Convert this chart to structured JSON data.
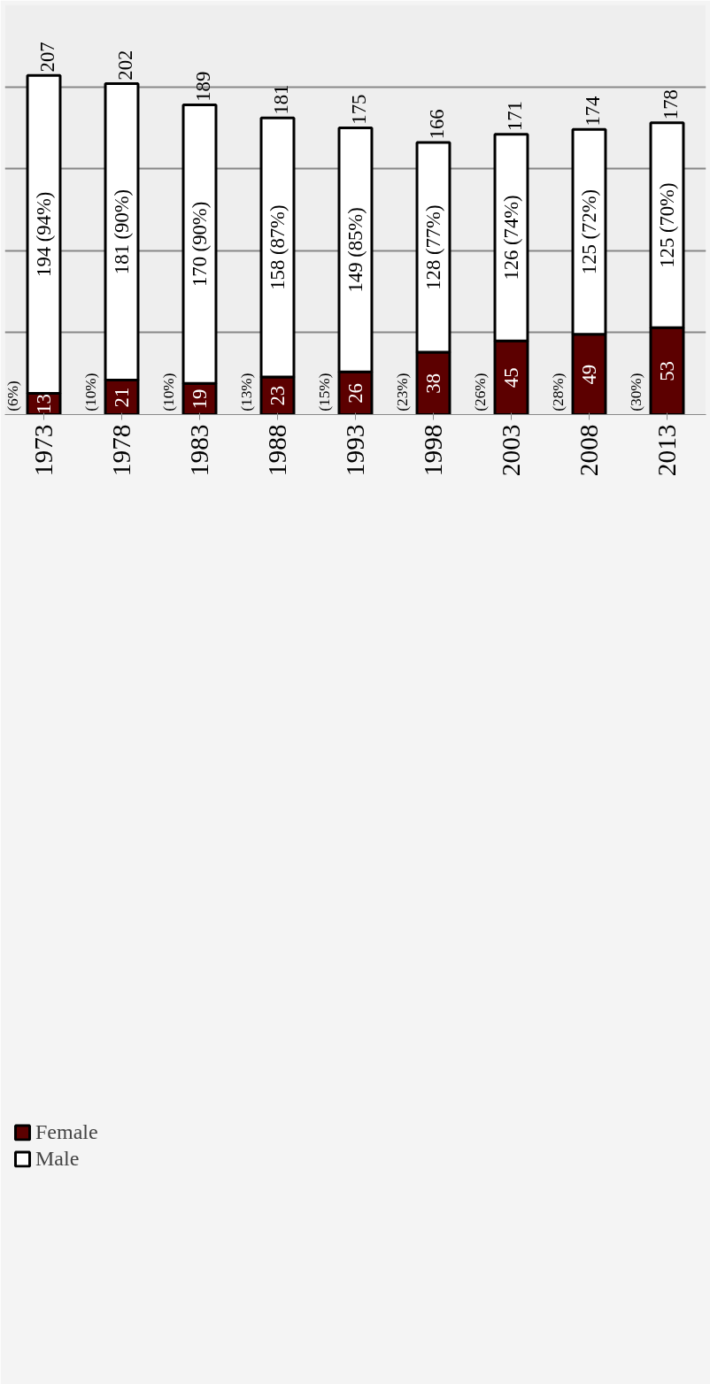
{
  "chart_data": {
    "type": "bar",
    "stacked": true,
    "categories": [
      "1973",
      "1978",
      "1983",
      "1988",
      "1993",
      "1998",
      "2003",
      "2008",
      "2013"
    ],
    "series": [
      {
        "name": "Female",
        "color": "#5c0000",
        "values": [
          13,
          21,
          19,
          23,
          26,
          38,
          45,
          49,
          53
        ],
        "value_labels": [
          "13",
          "21",
          "19",
          "23",
          "26",
          "38",
          "45",
          "49",
          "53"
        ]
      },
      {
        "name": "Male",
        "color": "#ffffff",
        "values": [
          194,
          181,
          170,
          158,
          149,
          128,
          126,
          125,
          125
        ],
        "value_labels": [
          "194 (94%)",
          "181 (90%)",
          "170 (90%)",
          "158 (87%)",
          "149 (85%)",
          "128 (77%)",
          "126 (74%)",
          "125 (72%)",
          "125 (70%)"
        ]
      }
    ],
    "totals": [
      "207",
      "202",
      "189",
      "181",
      "175",
      "166",
      "171",
      "174",
      "178"
    ],
    "annotations": [
      {
        "text": "(6%)",
        "x": "1973",
        "y": 0
      },
      {
        "text": "(10%)",
        "x": "1978",
        "y": 0
      },
      {
        "text": "(10%)",
        "x": "1983",
        "y": 0
      },
      {
        "text": "(13%)",
        "x": "1988",
        "y": 0
      },
      {
        "text": "(15%)",
        "x": "1993",
        "y": 0
      },
      {
        "text": "(23%)",
        "x": "1998",
        "y": 0
      },
      {
        "text": "(26%)",
        "x": "2003",
        "y": 0
      },
      {
        "text": "(28%)",
        "x": "2008",
        "y": 0
      },
      {
        "text": "(30%)",
        "x": "2013",
        "y": 0
      }
    ],
    "ylim": [
      0,
      250
    ],
    "yticks": [
      {
        "value": 0,
        "label": null
      },
      {
        "value": 50,
        "label": null
      },
      {
        "value": 100,
        "label": null
      },
      {
        "value": 150,
        "label": null
      },
      {
        "value": 200,
        "label": null
      },
      {
        "value": 250,
        "label": null
      }
    ],
    "grid": "y",
    "legend": "bottom left",
    "tick_labels": "x"
  }
}
